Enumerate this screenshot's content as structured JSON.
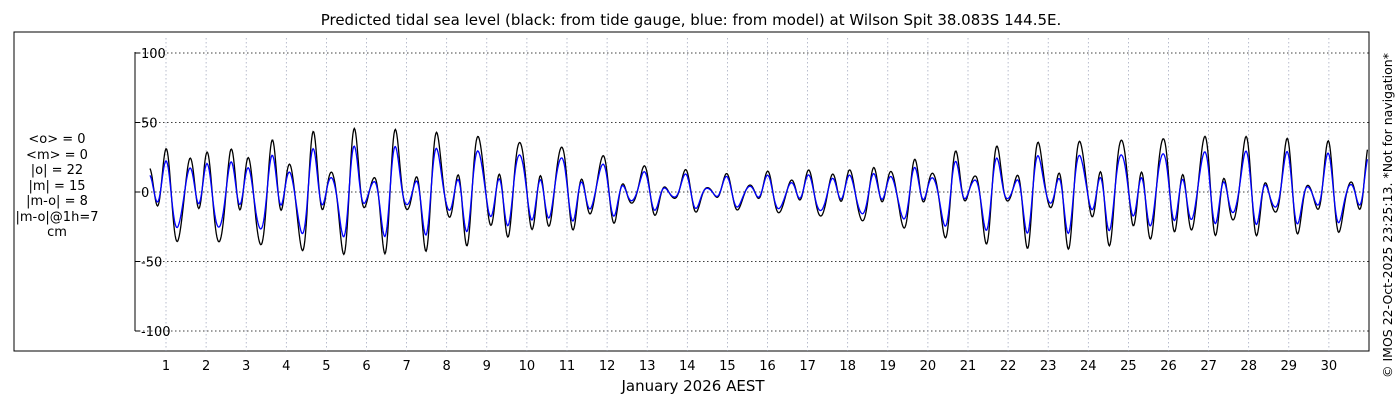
{
  "chart_data": {
    "type": "line",
    "title": "Predicted tidal sea level (black: from tide gauge, blue: from model) at Wilson Spit 38.083S 144.5E.",
    "xlabel": "January 2026 AEST",
    "ylabel": "",
    "x_ticks": [
      "1",
      "2",
      "3",
      "4",
      "5",
      "6",
      "7",
      "8",
      "9",
      "10",
      "11",
      "12",
      "13",
      "14",
      "15",
      "16",
      "17",
      "18",
      "19",
      "20",
      "21",
      "22",
      "23",
      "24",
      "25",
      "26",
      "27",
      "28",
      "29",
      "30"
    ],
    "y_ticks": [
      100,
      50,
      0,
      -50,
      -100
    ],
    "xlim": [
      0.6,
      31.9
    ],
    "ylim": [
      -110,
      110
    ],
    "grid": true,
    "series": [
      {
        "color": "#000000",
        "max_amplitude_by_day": [
          [
            0.6,
            36
          ],
          [
            3,
            40
          ],
          [
            5,
            46
          ],
          [
            7.5,
            44
          ],
          [
            9,
            42
          ],
          [
            11,
            34
          ],
          [
            13,
            18
          ],
          [
            15,
            13
          ],
          [
            17,
            18
          ],
          [
            19,
            24
          ],
          [
            20.5,
            32
          ],
          [
            23,
            40
          ],
          [
            25,
            42
          ],
          [
            27,
            40
          ],
          [
            29.5,
            34
          ],
          [
            31.9,
            32
          ]
        ]
      },
      {
        "color": "#0000ff",
        "max_amplitude_by_day": [
          [
            0.6,
            26
          ],
          [
            3,
            28
          ],
          [
            5,
            33
          ],
          [
            7.5,
            32
          ],
          [
            9,
            31
          ],
          [
            11,
            26
          ],
          [
            13,
            14
          ],
          [
            15,
            11
          ],
          [
            17,
            14
          ],
          [
            19,
            18
          ],
          [
            20.5,
            24
          ],
          [
            23,
            29
          ],
          [
            25,
            30
          ],
          [
            27,
            29
          ],
          [
            29.5,
            26
          ],
          [
            31.9,
            24
          ]
        ]
      }
    ]
  },
  "stats": {
    "mean_obs": "<o> = 0",
    "mean_model": "<m> = 0",
    "abs_obs": "|o| = 22",
    "abs_model": "|m| = 15",
    "abs_diff": "|m-o| = 8",
    "abs_diff_1h": "|m-o|@1h=7",
    "unit": "cm"
  },
  "copyright": "© IMOS 22-Oct-2025 23:25:13. *Not for navigation*"
}
